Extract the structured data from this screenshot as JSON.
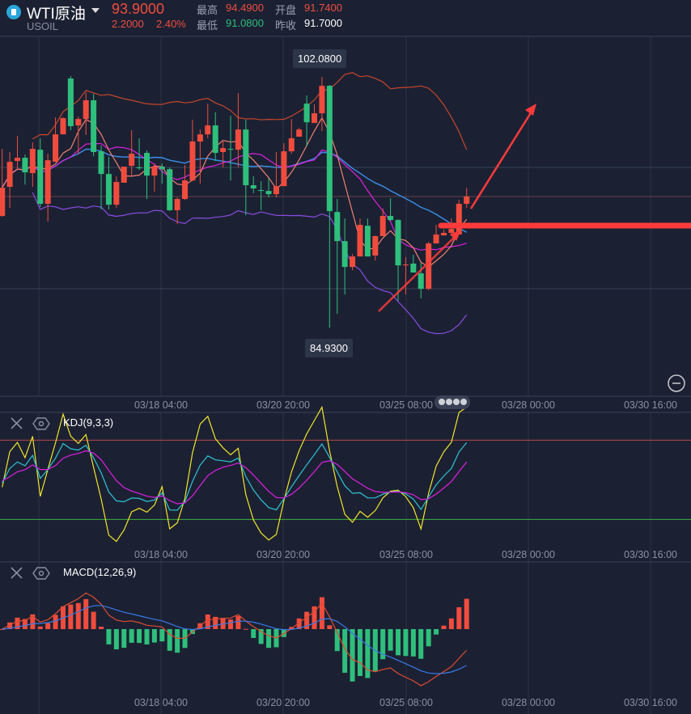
{
  "header": {
    "title": "WTI原油",
    "symbol": "USOIL",
    "price": "93.9000",
    "change": "2.2000",
    "change_pct": "2.40%",
    "high_label": "最高",
    "high": "94.4900",
    "open_label": "开盘",
    "open": "91.7400",
    "low_label": "最低",
    "low": "91.0800",
    "prev_close_label": "昨收",
    "prev_close": "91.7000"
  },
  "colors": {
    "up": "#f04c3e",
    "down": "#2fbf7c",
    "background": "#1b2133"
  },
  "annotations": {
    "max_label": "102.0800",
    "min_label": "84.9300"
  },
  "panels": {
    "kdj_title": "KDJ(9,3,3)",
    "macd_title": "MACD(12,26,9)"
  },
  "chart_data": {
    "type": "candlestick",
    "x_ticks": [
      "03/18 04:00",
      "03/20 20:00",
      "03/25 08:00",
      "03/28 00:00",
      "03/30 16:00"
    ],
    "ylim": [
      80.24,
      104.85
    ],
    "grid": true,
    "overlays": [
      "MA5",
      "MA10",
      "BOLL(20,2)"
    ],
    "candles": [
      [
        92.57,
        97.16,
        92.51,
        94.5
      ],
      [
        94.56,
        96.94,
        93.12,
        96.27
      ],
      [
        96.33,
        98.04,
        95.72,
        96.55
      ],
      [
        96.55,
        96.77,
        94.72,
        95.55
      ],
      [
        95.5,
        97.6,
        94.56,
        97.16
      ],
      [
        97.1,
        97.88,
        93.18,
        93.4
      ],
      [
        93.4,
        96.83,
        92.18,
        96.38
      ],
      [
        96.27,
        99.31,
        96.27,
        98.15
      ],
      [
        98.15,
        99.31,
        98.15,
        99.26
      ],
      [
        101.97,
        102.14,
        98.43,
        98.71
      ],
      [
        98.76,
        99.37,
        96.77,
        99.2
      ],
      [
        99.2,
        101.03,
        98.1,
        100.48
      ],
      [
        100.48,
        100.92,
        96.66,
        96.94
      ],
      [
        96.99,
        97.38,
        93.01,
        95.44
      ],
      [
        95.44,
        96.6,
        93.01,
        93.34
      ],
      [
        93.34,
        95.28,
        93.12,
        94.89
      ],
      [
        94.84,
        95.94,
        94.84,
        95.94
      ],
      [
        96.0,
        98.43,
        95.33,
        96.83
      ],
      [
        95.89,
        97.88,
        95.72,
        95.83
      ],
      [
        96.88,
        97.05,
        93.73,
        95.33
      ],
      [
        95.33,
        96.16,
        94.23,
        95.94
      ],
      [
        95.94,
        96.16,
        94.78,
        95.77
      ],
      [
        95.77,
        95.89,
        92.9,
        92.96
      ],
      [
        92.96,
        93.84,
        92.01,
        93.73
      ],
      [
        93.73,
        96.05,
        93.67,
        95.0
      ],
      [
        95.0,
        99.15,
        94.95,
        97.66
      ],
      [
        97.66,
        98.48,
        94.78,
        98.15
      ],
      [
        98.15,
        100.25,
        97.88,
        98.76
      ],
      [
        98.76,
        99.65,
        96.33,
        96.88
      ],
      [
        96.94,
        97.66,
        95.89,
        97.21
      ],
      [
        97.16,
        99.42,
        95.0,
        97.1
      ],
      [
        97.1,
        100.97,
        95.89,
        98.48
      ],
      [
        98.48,
        99.15,
        92.62,
        94.67
      ],
      [
        94.67,
        95.28,
        94.12,
        94.45
      ],
      [
        94.34,
        94.95,
        92.96,
        94.28
      ],
      [
        94.28,
        95.17,
        93.84,
        94.06
      ],
      [
        94.06,
        96.94,
        93.84,
        94.61
      ],
      [
        94.61,
        97.54,
        94.61,
        96.99
      ],
      [
        96.99,
        99.2,
        96.83,
        97.88
      ],
      [
        97.99,
        98.6,
        97.99,
        98.48
      ],
      [
        100.25,
        100.81,
        97.32,
        98.98
      ],
      [
        98.93,
        100.2,
        98.93,
        99.59
      ],
      [
        99.59,
        102.08,
        98.37,
        101.47
      ],
      [
        101.47,
        101.53,
        84.93,
        92.9
      ],
      [
        92.84,
        93.73,
        85.87,
        90.85
      ],
      [
        90.85,
        92.4,
        87.2,
        89.08
      ],
      [
        89.08,
        89.97,
        88.86,
        89.8
      ],
      [
        89.8,
        92.4,
        89.8,
        91.96
      ],
      [
        91.9,
        92.4,
        89.8,
        89.8
      ],
      [
        89.86,
        91.24,
        89.52,
        91.19
      ],
      [
        91.19,
        93.07,
        91.19,
        92.57
      ],
      [
        92.57,
        93.78,
        92.24,
        92.29
      ],
      [
        92.29,
        92.35,
        86.76,
        89.19
      ],
      [
        89.19,
        89.75,
        87.2,
        89.25
      ],
      [
        89.31,
        89.91,
        88.7,
        88.7
      ],
      [
        88.64,
        89.36,
        86.93,
        87.59
      ],
      [
        87.59,
        90.8,
        87.48,
        90.69
      ],
      [
        90.69,
        91.96,
        90.69,
        91.3
      ],
      [
        91.24,
        91.63,
        91.24,
        91.41
      ],
      [
        91.41,
        92.4,
        91.3,
        91.68
      ],
      [
        91.3,
        93.67,
        91.3,
        93.4
      ],
      [
        93.4,
        94.49,
        93.12,
        93.9
      ]
    ],
    "kdj_levels": [
      80,
      20
    ]
  }
}
